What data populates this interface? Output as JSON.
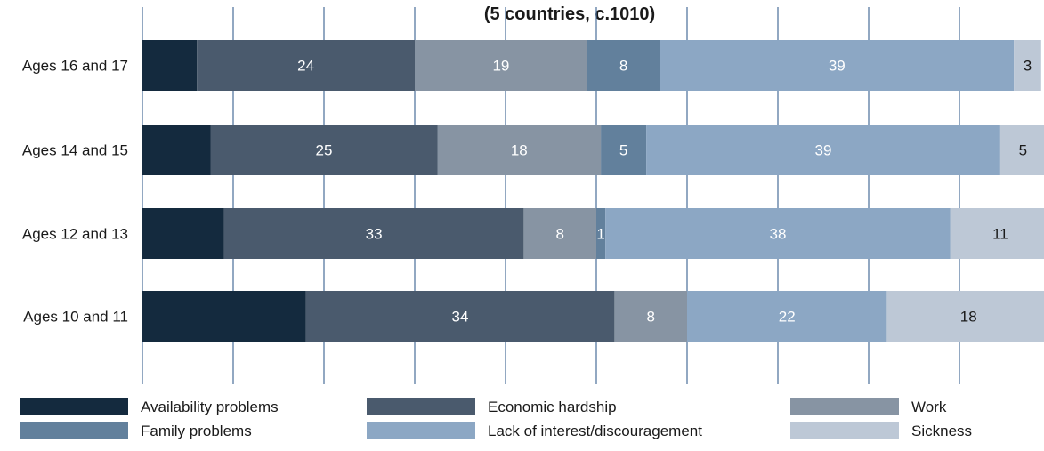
{
  "chart_data": {
    "type": "bar",
    "orientation": "horizontal",
    "stacked": true,
    "title": "(5 countries, c.1010)",
    "categories": [
      "Ages 16 and 17",
      "Ages 14 and 15",
      "Ages 12 and 13",
      "Ages 10 and 11"
    ],
    "series": [
      {
        "name": "Availability problems",
        "color": "#142a3e",
        "values": [
          6,
          7.5,
          9,
          18
        ],
        "labels": [
          "",
          "",
          "",
          ""
        ]
      },
      {
        "name": "Economic hardship",
        "color": "#4a5a6d",
        "values": [
          24,
          25,
          33,
          34
        ],
        "labels": [
          "24",
          "25",
          "33",
          "34"
        ]
      },
      {
        "name": "Work",
        "color": "#8794a3",
        "values": [
          19,
          18,
          8,
          8
        ],
        "labels": [
          "19",
          "18",
          "8",
          "8"
        ]
      },
      {
        "name": "Family problems",
        "color": "#62809c",
        "values": [
          8,
          5,
          1,
          0
        ],
        "labels": [
          "8",
          "5",
          "1",
          ""
        ]
      },
      {
        "name": "Lack of interest/discouragement",
        "color": "#8ca7c4",
        "values": [
          39,
          39,
          38,
          22
        ],
        "labels": [
          "39",
          "39",
          "38",
          "22"
        ]
      },
      {
        "name": "Sickness",
        "color": "#bdc8d6",
        "values": [
          3,
          5,
          11,
          18
        ],
        "labels": [
          "3",
          "5",
          "11",
          "18"
        ]
      }
    ],
    "xlim": [
      0,
      100
    ],
    "grid": true,
    "legend_position": "bottom"
  }
}
